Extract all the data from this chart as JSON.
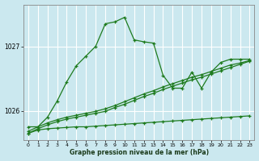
{
  "bg_color": "#cbe8ef",
  "grid_color": "#ffffff",
  "line_color": "#1e7b1e",
  "marker": "+",
  "xlabel": "Graphe pression niveau de la mer (hPa)",
  "xlim": [
    -0.5,
    23.5
  ],
  "ylim": [
    1025.55,
    1027.65
  ],
  "yticks": [
    1026,
    1027
  ],
  "xticks": [
    0,
    1,
    2,
    3,
    4,
    5,
    6,
    7,
    8,
    9,
    10,
    11,
    12,
    13,
    14,
    15,
    16,
    17,
    18,
    19,
    20,
    21,
    22,
    23
  ],
  "series": [
    {
      "x": [
        0,
        1,
        2,
        3,
        4,
        5,
        6,
        7,
        8,
        9,
        10,
        11,
        12,
        13,
        14,
        15,
        16,
        17,
        18,
        19,
        20,
        21,
        22,
        23
      ],
      "y": [
        1025.75,
        1025.75,
        1025.9,
        1026.15,
        1026.45,
        1026.7,
        1026.85,
        1027.0,
        1027.35,
        1027.38,
        1027.45,
        1027.1,
        1027.07,
        1027.05,
        1026.55,
        1026.35,
        1026.35,
        1026.6,
        1026.35,
        1026.6,
        1026.75,
        1026.8,
        1026.8,
        1026.8
      ]
    },
    {
      "x": [
        0,
        1,
        2,
        3,
        4,
        5,
        6,
        7,
        8,
        9,
        10,
        11,
        12,
        13,
        14,
        15,
        16,
        17,
        18,
        19,
        20,
        21,
        22,
        23
      ],
      "y": [
        1025.65,
        1025.7,
        1025.72,
        1025.73,
        1025.74,
        1025.75,
        1025.75,
        1025.76,
        1025.77,
        1025.78,
        1025.79,
        1025.8,
        1025.81,
        1025.82,
        1025.83,
        1025.84,
        1025.85,
        1025.86,
        1025.87,
        1025.88,
        1025.89,
        1025.9,
        1025.91,
        1025.92
      ]
    },
    {
      "x": [
        0,
        1,
        2,
        3,
        4,
        5,
        6,
        7,
        8,
        9,
        10,
        11,
        12,
        13,
        14,
        15,
        16,
        17,
        18,
        19,
        20,
        21,
        22,
        23
      ],
      "y": [
        1025.65,
        1025.72,
        1025.78,
        1025.83,
        1025.87,
        1025.9,
        1025.93,
        1025.96,
        1025.99,
        1026.05,
        1026.1,
        1026.16,
        1026.22,
        1026.27,
        1026.33,
        1026.38,
        1026.43,
        1026.48,
        1026.52,
        1026.57,
        1026.62,
        1026.67,
        1026.72,
        1026.77
      ]
    },
    {
      "x": [
        0,
        1,
        2,
        3,
        4,
        5,
        6,
        7,
        8,
        9,
        10,
        11,
        12,
        13,
        14,
        15,
        16,
        17,
        18,
        19,
        20,
        21,
        22,
        23
      ],
      "y": [
        1025.68,
        1025.75,
        1025.81,
        1025.86,
        1025.9,
        1025.93,
        1025.96,
        1025.99,
        1026.03,
        1026.08,
        1026.14,
        1026.2,
        1026.26,
        1026.31,
        1026.37,
        1026.42,
        1026.47,
        1026.52,
        1026.56,
        1026.61,
        1026.66,
        1026.71,
        1026.74,
        1026.78
      ]
    }
  ]
}
